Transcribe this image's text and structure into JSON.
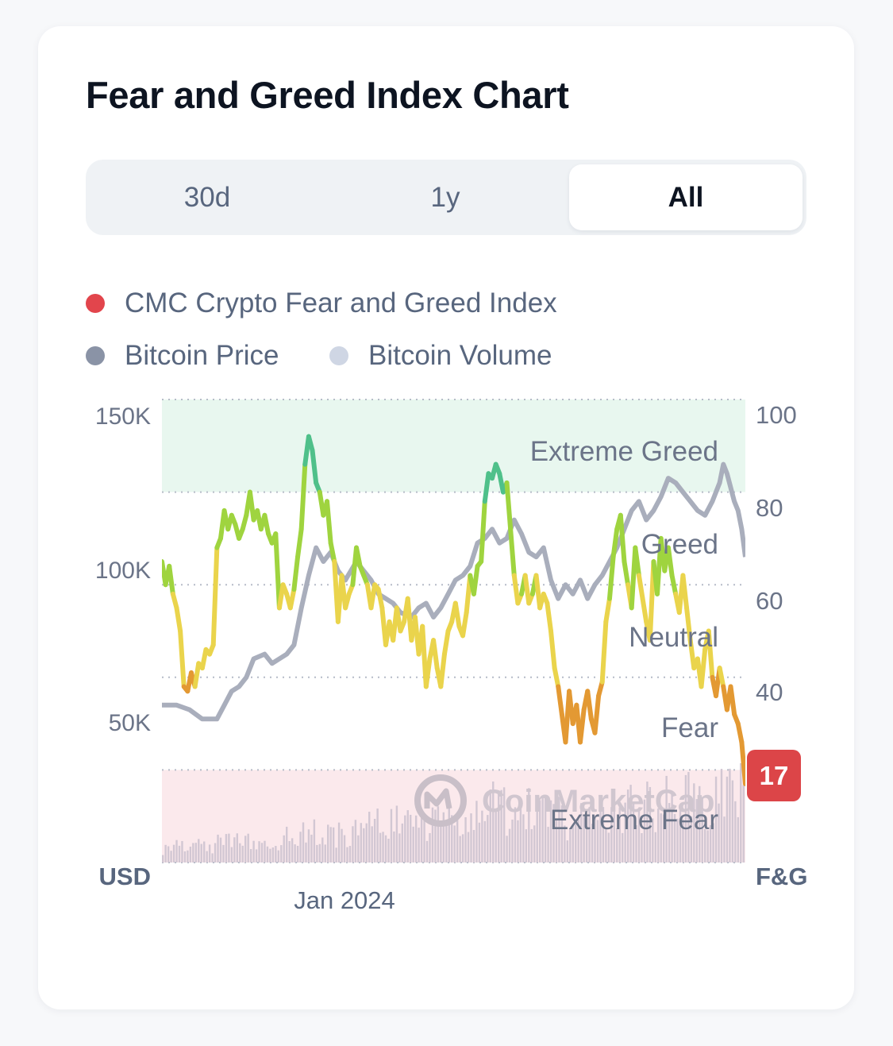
{
  "title": "Fear and Greed Index Chart",
  "tabs": [
    {
      "label": "30d",
      "active": false
    },
    {
      "label": "1y",
      "active": false
    },
    {
      "label": "All",
      "active": true
    }
  ],
  "legend": {
    "fng": {
      "label": "CMC Crypto Fear and Greed Index",
      "color": "#ea3943"
    },
    "price": {
      "label": "Bitcoin Price",
      "color": "#8a93a6"
    },
    "volume": {
      "label": "Bitcoin Volume",
      "color": "#cfd6e4"
    }
  },
  "watermark": "CoinMarketCap",
  "current_value": "17",
  "chart_data": {
    "type": "line",
    "title": "Fear and Greed Index Chart",
    "x_label": "Jan 2024",
    "left_axis": {
      "unit": "USD",
      "ticks": [
        "150K",
        "100K",
        "50K"
      ],
      "tick_values": [
        150000,
        100000,
        50000
      ],
      "range": [
        0,
        150000
      ]
    },
    "right_axis": {
      "unit": "F&G",
      "ticks": [
        "100",
        "80",
        "60",
        "40"
      ],
      "tick_values": [
        100,
        80,
        60,
        40
      ],
      "range": [
        0,
        100
      ]
    },
    "zones": [
      {
        "label": "Extreme Greed",
        "from": 80,
        "to": 100,
        "color": "#e8f7ef"
      },
      {
        "label": "Greed",
        "from": 60,
        "to": 80
      },
      {
        "label": "Neutral",
        "from": 40,
        "to": 60
      },
      {
        "label": "Fear",
        "from": 20,
        "to": 40
      },
      {
        "label": "Extreme Fear",
        "from": 0,
        "to": 20,
        "color": "#fbe9ec"
      }
    ],
    "fng_series": {
      "name": "CMC Crypto Fear and Greed Index",
      "points": [
        [
          0,
          65
        ],
        [
          2,
          60
        ],
        [
          4,
          64
        ],
        [
          6,
          58
        ],
        [
          8,
          55
        ],
        [
          10,
          50
        ],
        [
          12,
          38
        ],
        [
          14,
          37
        ],
        [
          16,
          41
        ],
        [
          18,
          38
        ],
        [
          20,
          43
        ],
        [
          22,
          42
        ],
        [
          24,
          46
        ],
        [
          26,
          45
        ],
        [
          28,
          47
        ],
        [
          30,
          68
        ],
        [
          32,
          70
        ],
        [
          34,
          76
        ],
        [
          36,
          72
        ],
        [
          38,
          75
        ],
        [
          40,
          73
        ],
        [
          42,
          70
        ],
        [
          44,
          72
        ],
        [
          46,
          75
        ],
        [
          48,
          80
        ],
        [
          50,
          74
        ],
        [
          52,
          76
        ],
        [
          54,
          72
        ],
        [
          56,
          75
        ],
        [
          58,
          71
        ],
        [
          60,
          69
        ],
        [
          62,
          71
        ],
        [
          64,
          55
        ],
        [
          66,
          60
        ],
        [
          68,
          58
        ],
        [
          70,
          55
        ],
        [
          72,
          59
        ],
        [
          74,
          66
        ],
        [
          76,
          72
        ],
        [
          78,
          86
        ],
        [
          80,
          92
        ],
        [
          82,
          89
        ],
        [
          84,
          82
        ],
        [
          86,
          80
        ],
        [
          88,
          75
        ],
        [
          90,
          78
        ],
        [
          92,
          69
        ],
        [
          94,
          65
        ],
        [
          96,
          52
        ],
        [
          98,
          62
        ],
        [
          100,
          55
        ],
        [
          102,
          58
        ],
        [
          104,
          60
        ],
        [
          106,
          68
        ],
        [
          108,
          64
        ],
        [
          110,
          62
        ],
        [
          112,
          60
        ],
        [
          114,
          55
        ],
        [
          116,
          60
        ],
        [
          118,
          59
        ],
        [
          120,
          55
        ],
        [
          122,
          47
        ],
        [
          124,
          52
        ],
        [
          126,
          48
        ],
        [
          128,
          55
        ],
        [
          130,
          50
        ],
        [
          132,
          52
        ],
        [
          134,
          57
        ],
        [
          136,
          48
        ],
        [
          138,
          53
        ],
        [
          140,
          45
        ],
        [
          142,
          51
        ],
        [
          144,
          38
        ],
        [
          146,
          44
        ],
        [
          148,
          48
        ],
        [
          150,
          42
        ],
        [
          152,
          38
        ],
        [
          154,
          45
        ],
        [
          156,
          50
        ],
        [
          158,
          52
        ],
        [
          160,
          56
        ],
        [
          162,
          51
        ],
        [
          164,
          49
        ],
        [
          166,
          54
        ],
        [
          168,
          62
        ],
        [
          170,
          58
        ],
        [
          172,
          64
        ],
        [
          174,
          65
        ],
        [
          176,
          78
        ],
        [
          178,
          84
        ],
        [
          180,
          83
        ],
        [
          182,
          86
        ],
        [
          184,
          84
        ],
        [
          186,
          80
        ],
        [
          188,
          82
        ],
        [
          190,
          72
        ],
        [
          192,
          62
        ],
        [
          194,
          56
        ],
        [
          196,
          58
        ],
        [
          198,
          62
        ],
        [
          200,
          56
        ],
        [
          202,
          58
        ],
        [
          204,
          62
        ],
        [
          206,
          55
        ],
        [
          208,
          58
        ],
        [
          210,
          56
        ],
        [
          212,
          50
        ],
        [
          214,
          42
        ],
        [
          216,
          38
        ],
        [
          218,
          32
        ],
        [
          220,
          26
        ],
        [
          222,
          37
        ],
        [
          224,
          30
        ],
        [
          226,
          34
        ],
        [
          228,
          26
        ],
        [
          230,
          33
        ],
        [
          232,
          37
        ],
        [
          234,
          31
        ],
        [
          236,
          28
        ],
        [
          238,
          36
        ],
        [
          240,
          39
        ],
        [
          242,
          52
        ],
        [
          244,
          57
        ],
        [
          246,
          66
        ],
        [
          248,
          72
        ],
        [
          250,
          75
        ],
        [
          252,
          65
        ],
        [
          254,
          60
        ],
        [
          256,
          55
        ],
        [
          258,
          68
        ],
        [
          260,
          62
        ],
        [
          262,
          57
        ],
        [
          264,
          52
        ],
        [
          266,
          48
        ],
        [
          268,
          65
        ],
        [
          270,
          58
        ],
        [
          272,
          70
        ],
        [
          274,
          63
        ],
        [
          276,
          68
        ],
        [
          278,
          62
        ],
        [
          280,
          58
        ],
        [
          282,
          54
        ],
        [
          284,
          62
        ],
        [
          286,
          55
        ],
        [
          288,
          48
        ],
        [
          290,
          42
        ],
        [
          292,
          44
        ],
        [
          294,
          38
        ],
        [
          296,
          46
        ],
        [
          298,
          50
        ],
        [
          300,
          40
        ],
        [
          302,
          36
        ],
        [
          304,
          42
        ],
        [
          306,
          38
        ],
        [
          308,
          33
        ],
        [
          310,
          38
        ],
        [
          312,
          32
        ],
        [
          314,
          30
        ],
        [
          316,
          26
        ],
        [
          318,
          17
        ]
      ]
    },
    "price_series": {
      "name": "Bitcoin Price",
      "points": [
        [
          0,
          34
        ],
        [
          8,
          34
        ],
        [
          15,
          33
        ],
        [
          22,
          31
        ],
        [
          30,
          31
        ],
        [
          34,
          34
        ],
        [
          38,
          37
        ],
        [
          42,
          38
        ],
        [
          46,
          40
        ],
        [
          50,
          44
        ],
        [
          56,
          45
        ],
        [
          60,
          43
        ],
        [
          64,
          44
        ],
        [
          68,
          45
        ],
        [
          72,
          47
        ],
        [
          76,
          55
        ],
        [
          80,
          62
        ],
        [
          84,
          68
        ],
        [
          88,
          65
        ],
        [
          92,
          67
        ],
        [
          96,
          63
        ],
        [
          100,
          61
        ],
        [
          106,
          65
        ],
        [
          110,
          63
        ],
        [
          114,
          61
        ],
        [
          118,
          58
        ],
        [
          122,
          57
        ],
        [
          126,
          56
        ],
        [
          130,
          54
        ],
        [
          136,
          53
        ],
        [
          140,
          55
        ],
        [
          144,
          56
        ],
        [
          148,
          53
        ],
        [
          152,
          55
        ],
        [
          156,
          58
        ],
        [
          160,
          61
        ],
        [
          164,
          62
        ],
        [
          168,
          64
        ],
        [
          172,
          69
        ],
        [
          176,
          70
        ],
        [
          180,
          72
        ],
        [
          184,
          69
        ],
        [
          188,
          70
        ],
        [
          192,
          74
        ],
        [
          196,
          71
        ],
        [
          200,
          67
        ],
        [
          204,
          66
        ],
        [
          208,
          68
        ],
        [
          212,
          61
        ],
        [
          216,
          57
        ],
        [
          220,
          60
        ],
        [
          224,
          58
        ],
        [
          228,
          61
        ],
        [
          232,
          57
        ],
        [
          236,
          60
        ],
        [
          240,
          62
        ],
        [
          244,
          65
        ],
        [
          248,
          68
        ],
        [
          252,
          72
        ],
        [
          256,
          76
        ],
        [
          260,
          78
        ],
        [
          264,
          74
        ],
        [
          268,
          76
        ],
        [
          272,
          79
        ],
        [
          276,
          83
        ],
        [
          280,
          82
        ],
        [
          284,
          80
        ],
        [
          288,
          78
        ],
        [
          292,
          76
        ],
        [
          296,
          75
        ],
        [
          300,
          78
        ],
        [
          304,
          82
        ],
        [
          306,
          86
        ],
        [
          308,
          84
        ],
        [
          310,
          81
        ],
        [
          312,
          78
        ],
        [
          314,
          76
        ],
        [
          316,
          72
        ],
        [
          318,
          66
        ]
      ]
    },
    "volume_series": {
      "name": "Bitcoin Volume",
      "note": "bars along bottom of chart, relative heights",
      "points": [
        [
          0,
          6
        ],
        [
          20,
          7
        ],
        [
          40,
          8
        ],
        [
          60,
          9
        ],
        [
          80,
          12
        ],
        [
          100,
          11
        ],
        [
          120,
          16
        ],
        [
          140,
          14
        ],
        [
          160,
          18
        ],
        [
          180,
          22
        ],
        [
          200,
          20
        ],
        [
          220,
          17
        ],
        [
          240,
          19
        ],
        [
          260,
          22
        ],
        [
          280,
          26
        ],
        [
          300,
          24
        ],
        [
          318,
          28
        ]
      ]
    }
  },
  "zone_labels": [
    "Extreme Greed",
    "Greed",
    "Neutral",
    "Fear",
    "Extreme Fear"
  ]
}
